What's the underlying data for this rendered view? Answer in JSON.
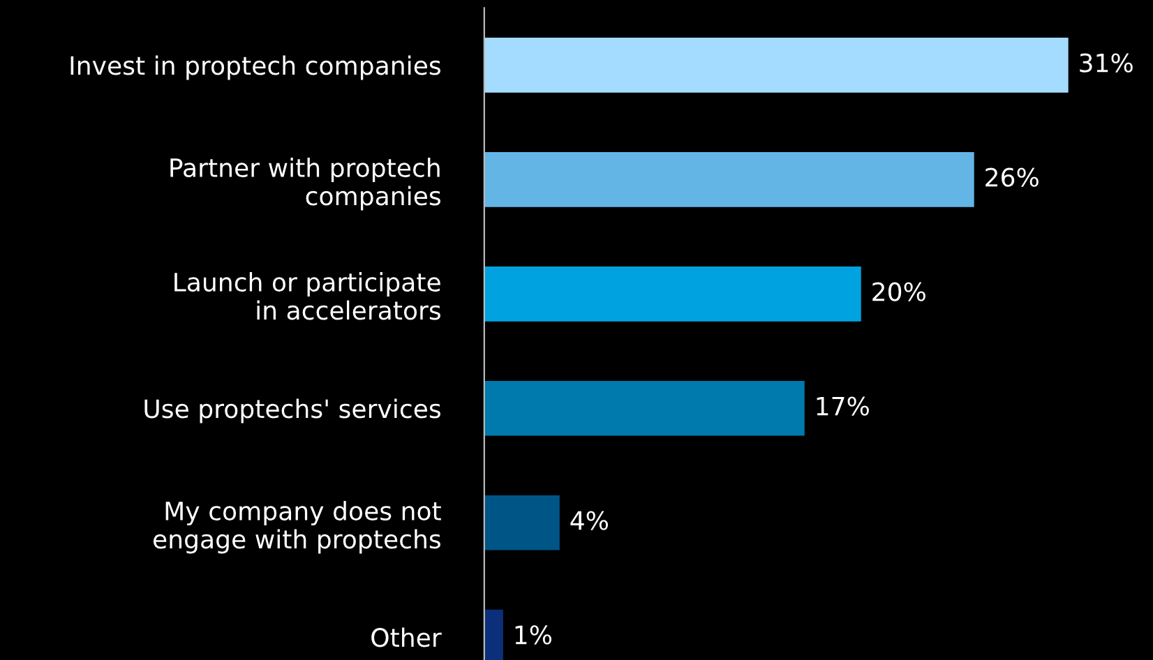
{
  "chart_data": {
    "type": "bar",
    "orientation": "horizontal",
    "categories": [
      "Invest in proptech companies",
      "Partner with proptech\ncompanies",
      "Launch or participate\nin accelerators",
      "Use proptechs' services",
      "My company does not\nengage with proptechs",
      "Other"
    ],
    "values": [
      31,
      26,
      20,
      17,
      4,
      1
    ],
    "colors": [
      "#a3dcff",
      "#63b5e5",
      "#00a3e0",
      "#0079ad",
      "#005587",
      "#0b2f7a"
    ],
    "value_labels": [
      "31%",
      "26%",
      "20%",
      "17%",
      "4%",
      "1%"
    ],
    "grid": false,
    "legend": false
  }
}
